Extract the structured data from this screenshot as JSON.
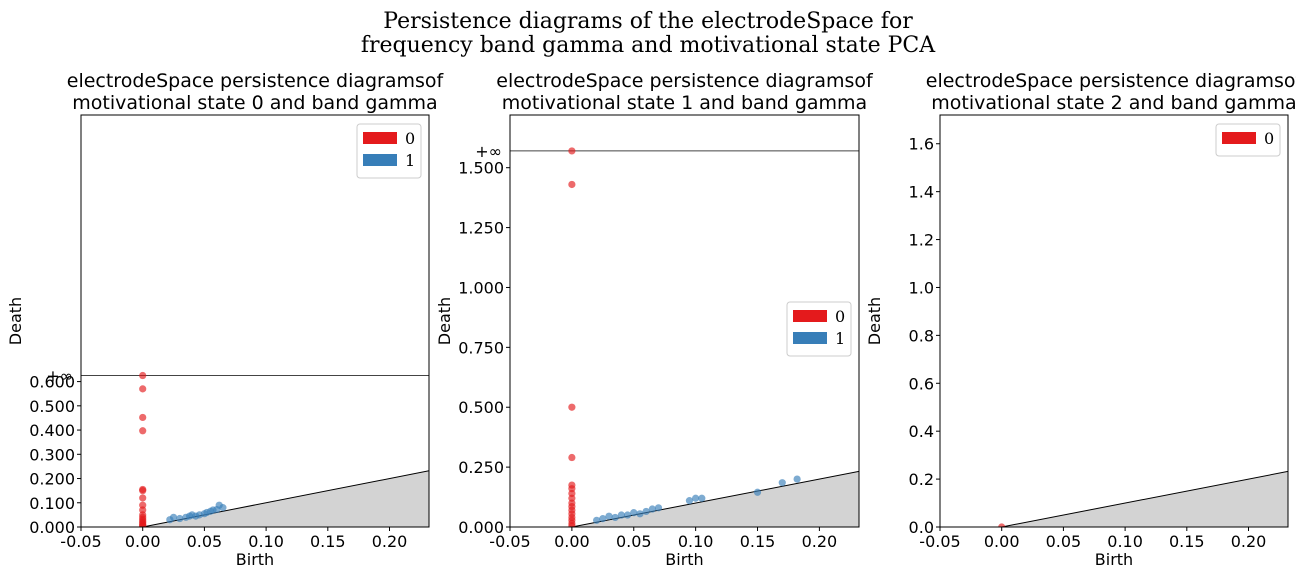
{
  "figure": {
    "suptitle": [
      "Persistence diagrams of the electrodeSpace for",
      "frequency band gamma and motivational state PCA"
    ]
  },
  "chart_data": [
    {
      "type": "scatter",
      "title": [
        "electrodeSpace persistence diagramsof",
        "motivational state 0 and band gamma"
      ],
      "xlabel": "Birth",
      "ylabel": "Death",
      "xlim": [
        -0.05,
        0.232
      ],
      "ylim": [
        0,
        1.7
      ],
      "xticks": [
        "-0.05",
        "0.00",
        "0.05",
        "0.10",
        "0.15",
        "0.20"
      ],
      "xtick_values": [
        -0.05,
        0,
        0.05,
        0.1,
        0.15,
        0.2
      ],
      "yticks": [
        "0.000",
        "0.100",
        "0.200",
        "0.300",
        "0.400",
        "0.500",
        "0.600"
      ],
      "ytick_values": [
        0,
        0.1,
        0.2,
        0.3,
        0.4,
        0.5,
        0.6
      ],
      "inf_label": "+∞",
      "inf_value": 0.625,
      "legend": {
        "placement": "upper right",
        "entries": [
          "0",
          "1"
        ]
      },
      "series": [
        {
          "name": "0",
          "color": "#e41a1c",
          "points": [
            [
              0,
              0.625
            ],
            [
              0,
              0.57
            ],
            [
              0,
              0.452
            ],
            [
              0,
              0.397
            ],
            [
              0,
              0.155
            ],
            [
              0,
              0.15
            ],
            [
              0,
              0.12
            ],
            [
              0,
              0.09
            ],
            [
              0,
              0.07
            ],
            [
              0,
              0.05
            ],
            [
              0,
              0.04
            ],
            [
              0,
              0.032
            ],
            [
              0,
              0.025
            ],
            [
              0,
              0.018
            ],
            [
              0,
              0.012
            ],
            [
              0,
              0.007
            ],
            [
              0,
              0.003
            ]
          ]
        },
        {
          "name": "1",
          "color": "#377eb8",
          "points": [
            [
              0.022,
              0.03
            ],
            [
              0.025,
              0.04
            ],
            [
              0.03,
              0.035
            ],
            [
              0.035,
              0.04
            ],
            [
              0.038,
              0.045
            ],
            [
              0.04,
              0.05
            ],
            [
              0.043,
              0.045
            ],
            [
              0.046,
              0.05
            ],
            [
              0.05,
              0.055
            ],
            [
              0.052,
              0.06
            ],
            [
              0.055,
              0.065
            ],
            [
              0.057,
              0.07
            ],
            [
              0.06,
              0.072
            ],
            [
              0.062,
              0.09
            ],
            [
              0.065,
              0.08
            ]
          ]
        }
      ]
    },
    {
      "type": "scatter",
      "title": [
        "electrodeSpace persistence diagramsof",
        "motivational state 1 and band gamma"
      ],
      "xlabel": "Birth",
      "ylabel": "Death",
      "xlim": [
        -0.05,
        0.232
      ],
      "ylim": [
        0,
        1.72
      ],
      "xticks": [
        "-0.05",
        "0.00",
        "0.05",
        "0.10",
        "0.15",
        "0.20"
      ],
      "xtick_values": [
        -0.05,
        0,
        0.05,
        0.1,
        0.15,
        0.2
      ],
      "yticks": [
        "0.000",
        "0.250",
        "0.500",
        "0.750",
        "1.000",
        "1.250",
        "1.500"
      ],
      "ytick_values": [
        0,
        0.25,
        0.5,
        0.75,
        1.0,
        1.25,
        1.5
      ],
      "inf_label": "+∞",
      "inf_value": 1.57,
      "legend": {
        "placement": "center right",
        "entries": [
          "0",
          "1"
        ]
      },
      "series": [
        {
          "name": "0",
          "color": "#e41a1c",
          "points": [
            [
              0,
              1.57
            ],
            [
              0,
              1.43
            ],
            [
              0,
              0.5
            ],
            [
              0,
              0.29
            ],
            [
              0,
              0.175
            ],
            [
              0,
              0.16
            ],
            [
              0,
              0.14
            ],
            [
              0,
              0.12
            ],
            [
              0,
              0.1
            ],
            [
              0,
              0.085
            ],
            [
              0,
              0.07
            ],
            [
              0,
              0.055
            ],
            [
              0,
              0.04
            ],
            [
              0,
              0.028
            ],
            [
              0,
              0.015
            ],
            [
              0,
              0.005
            ]
          ]
        },
        {
          "name": "1",
          "color": "#377eb8",
          "points": [
            [
              0.02,
              0.028
            ],
            [
              0.025,
              0.035
            ],
            [
              0.03,
              0.045
            ],
            [
              0.035,
              0.04
            ],
            [
              0.04,
              0.05
            ],
            [
              0.045,
              0.05
            ],
            [
              0.05,
              0.06
            ],
            [
              0.055,
              0.055
            ],
            [
              0.06,
              0.065
            ],
            [
              0.065,
              0.075
            ],
            [
              0.07,
              0.08
            ],
            [
              0.095,
              0.11
            ],
            [
              0.1,
              0.12
            ],
            [
              0.105,
              0.12
            ],
            [
              0.15,
              0.145
            ],
            [
              0.17,
              0.185
            ],
            [
              0.182,
              0.2
            ]
          ]
        }
      ]
    },
    {
      "type": "scatter",
      "title": [
        "electrodeSpace persistence diagramsof",
        "motivational state 2 and band gamma"
      ],
      "xlabel": "Birth",
      "ylabel": "Death",
      "xlim": [
        -0.05,
        0.232
      ],
      "ylim": [
        0,
        1.72
      ],
      "xticks": [
        "-0.05",
        "0.00",
        "0.05",
        "0.10",
        "0.15",
        "0.20"
      ],
      "xtick_values": [
        -0.05,
        0,
        0.05,
        0.1,
        0.15,
        0.2
      ],
      "yticks": [
        "0.0",
        "0.2",
        "0.4",
        "0.6",
        "0.8",
        "1.0",
        "1.2",
        "1.4",
        "1.6"
      ],
      "ytick_values": [
        0,
        0.2,
        0.4,
        0.6,
        0.8,
        1.0,
        1.2,
        1.4,
        1.6
      ],
      "inf_label": "",
      "inf_value": null,
      "legend": {
        "placement": "upper right",
        "entries": [
          "0"
        ]
      },
      "series": [
        {
          "name": "0",
          "color": "#e41a1c",
          "points": [
            [
              0,
              0
            ]
          ]
        }
      ]
    }
  ]
}
